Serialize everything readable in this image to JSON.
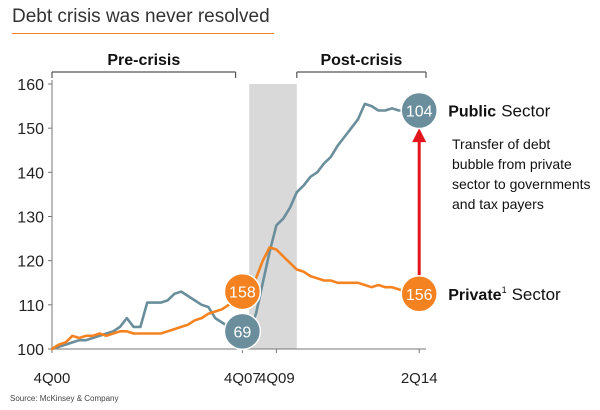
{
  "title": "Debt crisis was never resolved",
  "source": "Source: McKinsey & Company",
  "colors": {
    "public": "#6a8e9c",
    "private": "#f58220",
    "arrow": "#e3151c",
    "band": "#d9d9d9",
    "title_rule": "#f58220"
  },
  "chart_data": {
    "type": "line",
    "ylim": [
      100,
      160
    ],
    "yticks": [
      100,
      110,
      120,
      130,
      140,
      150,
      160
    ],
    "xlim": [
      0,
      55
    ],
    "xticks": [
      {
        "x": 0,
        "label": "4Q00"
      },
      {
        "x": 28,
        "label": "4Q07"
      },
      {
        "x": 33,
        "label": "4Q09"
      },
      {
        "x": 54,
        "label": "2Q14"
      }
    ],
    "shaded_period": {
      "x0": 29,
      "x1": 36
    },
    "periods": [
      {
        "label": "Pre-crisis",
        "x0": 0,
        "x1": 27
      },
      {
        "label": "Post-crisis",
        "x0": 36,
        "x1": 55
      }
    ],
    "series": [
      {
        "name": "Public",
        "points": [
          [
            0,
            100
          ],
          [
            1,
            100.5
          ],
          [
            2,
            101
          ],
          [
            3,
            101.5
          ],
          [
            4,
            102
          ],
          [
            5,
            102
          ],
          [
            6,
            102.5
          ],
          [
            7,
            103
          ],
          [
            8,
            103.5
          ],
          [
            9,
            104
          ],
          [
            10,
            105
          ],
          [
            11,
            107
          ],
          [
            12,
            105
          ],
          [
            13,
            105
          ],
          [
            14,
            110.5
          ],
          [
            15,
            110.5
          ],
          [
            16,
            110.5
          ],
          [
            17,
            111
          ],
          [
            18,
            112.5
          ],
          [
            19,
            113
          ],
          [
            20,
            112
          ],
          [
            21,
            111
          ],
          [
            22,
            110
          ],
          [
            23,
            109.5
          ],
          [
            24,
            107
          ],
          [
            25,
            106
          ],
          [
            26,
            105
          ],
          [
            27,
            105
          ],
          [
            28,
            104.5
          ],
          [
            29,
            104
          ],
          [
            30,
            108
          ],
          [
            31,
            115
          ],
          [
            32,
            122
          ],
          [
            33,
            128
          ],
          [
            34,
            129.5
          ],
          [
            35,
            132
          ],
          [
            36,
            135.5
          ],
          [
            37,
            137
          ],
          [
            38,
            139
          ],
          [
            39,
            140
          ],
          [
            40,
            142
          ],
          [
            41,
            143.5
          ],
          [
            42,
            146
          ],
          [
            43,
            148
          ],
          [
            44,
            150
          ],
          [
            45,
            152
          ],
          [
            46,
            155.5
          ],
          [
            47,
            155
          ],
          [
            48,
            154
          ],
          [
            49,
            154
          ],
          [
            50,
            154.5
          ],
          [
            51,
            154
          ],
          [
            52,
            154
          ],
          [
            53,
            154.5
          ],
          [
            54,
            154
          ]
        ]
      },
      {
        "name": "Private",
        "points": [
          [
            0,
            100
          ],
          [
            1,
            101
          ],
          [
            2,
            101.5
          ],
          [
            3,
            103
          ],
          [
            4,
            102.5
          ],
          [
            5,
            103
          ],
          [
            6,
            103
          ],
          [
            7,
            103.5
          ],
          [
            8,
            103
          ],
          [
            9,
            103.5
          ],
          [
            10,
            104
          ],
          [
            11,
            104
          ],
          [
            12,
            103.5
          ],
          [
            13,
            103.5
          ],
          [
            14,
            103.5
          ],
          [
            15,
            103.5
          ],
          [
            16,
            103.5
          ],
          [
            17,
            104
          ],
          [
            18,
            104.5
          ],
          [
            19,
            105
          ],
          [
            20,
            105.5
          ],
          [
            21,
            106.5
          ],
          [
            22,
            107
          ],
          [
            23,
            108
          ],
          [
            24,
            108.5
          ],
          [
            25,
            109
          ],
          [
            26,
            110
          ],
          [
            27,
            110.5
          ],
          [
            28,
            110.5
          ],
          [
            29,
            112
          ],
          [
            30,
            116
          ],
          [
            31,
            120
          ],
          [
            32,
            123
          ],
          [
            33,
            122.5
          ],
          [
            34,
            121
          ],
          [
            35,
            119.5
          ],
          [
            36,
            118
          ],
          [
            37,
            117.5
          ],
          [
            38,
            116.5
          ],
          [
            39,
            116
          ],
          [
            40,
            115.5
          ],
          [
            41,
            115.5
          ],
          [
            42,
            115
          ],
          [
            43,
            115
          ],
          [
            44,
            115
          ],
          [
            45,
            115
          ],
          [
            46,
            114.5
          ],
          [
            47,
            114
          ],
          [
            48,
            114.5
          ],
          [
            49,
            114
          ],
          [
            50,
            114
          ],
          [
            51,
            113.5
          ],
          [
            52,
            113
          ],
          [
            53,
            112.5
          ],
          [
            54,
            112.5
          ]
        ]
      }
    ],
    "markers": [
      {
        "series": "Private",
        "x": 28,
        "y": 113,
        "label": "158"
      },
      {
        "series": "Public",
        "x": 28,
        "y": 104,
        "label": "69"
      },
      {
        "series": "Public",
        "x": 54,
        "y": 154,
        "label": "104"
      },
      {
        "series": "Private",
        "x": 54,
        "y": 112.5,
        "label": "156"
      }
    ],
    "series_labels": [
      {
        "series": "Public",
        "prefix": "Public",
        "suffix": "Sector"
      },
      {
        "series": "Private",
        "prefix": "Private",
        "sup": "1",
        "suffix": "Sector"
      }
    ],
    "annotation": "Transfer of debt bubble from private sector to governments and tax payers",
    "arrow": {
      "x": 54,
      "y_from": 116,
      "y_to": 150
    }
  }
}
